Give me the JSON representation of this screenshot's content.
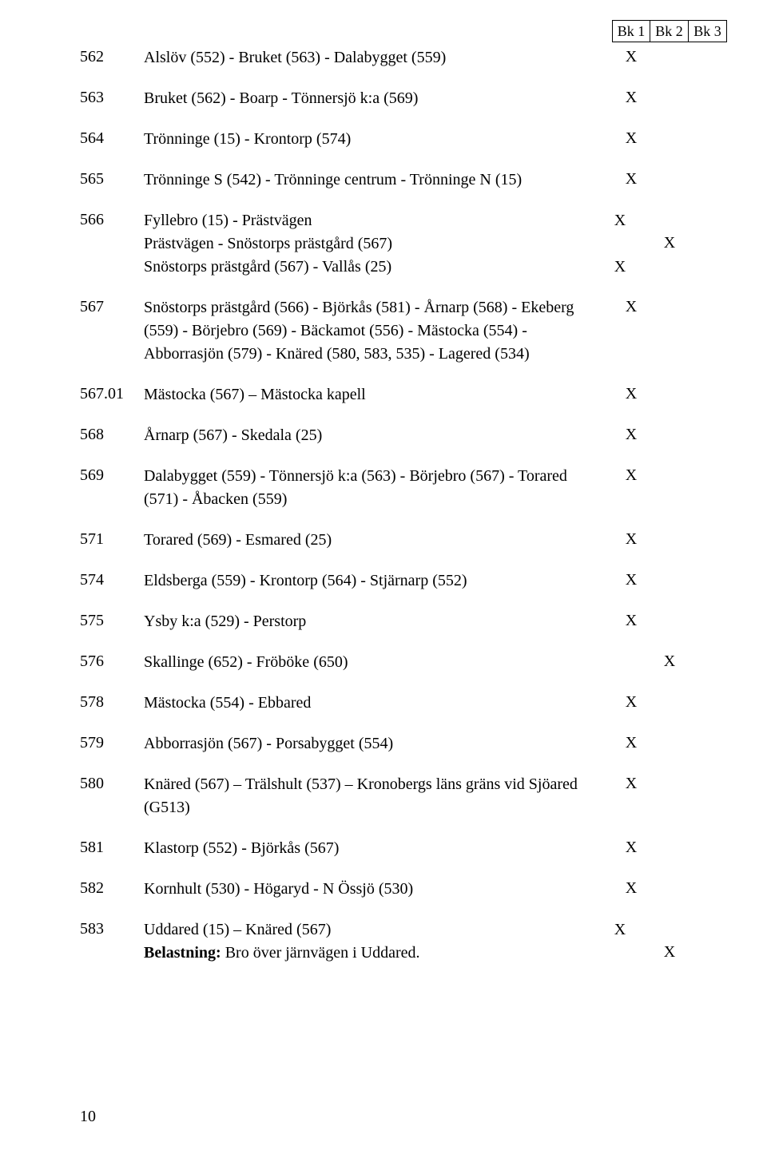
{
  "header": {
    "bk1": "Bk 1",
    "bk2": "Bk 2",
    "bk3": "Bk 3"
  },
  "rows": [
    {
      "num": "562",
      "lines": [
        "Alslöv (552) - Bruket (563) - Dalabygget (559)"
      ],
      "marks": [
        "X",
        "",
        ""
      ]
    },
    {
      "num": "563",
      "lines": [
        "Bruket (562) - Boarp - Tönnersjö k:a (569)"
      ],
      "marks": [
        "X",
        "",
        ""
      ]
    },
    {
      "num": "564",
      "lines": [
        "Trönninge (15) - Krontorp (574)"
      ],
      "marks": [
        "X",
        "",
        ""
      ]
    },
    {
      "num": "565",
      "lines": [
        "Trönninge S (542) - Trönninge centrum - Trönninge N (15)"
      ],
      "marks": [
        "X",
        "",
        ""
      ]
    },
    {
      "num": "566",
      "sublines": [
        {
          "text": "Fyllebro (15) - Prästvägen",
          "mark": "X"
        },
        {
          "text": "Prästvägen - Snöstorps prästgård (567)",
          "mark": ""
        },
        {
          "text": "Snöstorps prästgård (567) - Vallås (25)",
          "mark": "X"
        }
      ],
      "marks": [
        "",
        "X",
        ""
      ],
      "mark_row_index": 1
    },
    {
      "num": "567",
      "lines": [
        "Snöstorps prästgård (566) - Björkås (581) - Årnarp (568) - Ekeberg (559) - Börjebro (569) - Bäckamot (556) - Mästocka (554) - Abborrasjön (579) - Knäred (580, 583, 535) - Lagered (534)"
      ],
      "marks": [
        "X",
        "",
        ""
      ]
    },
    {
      "num": "567.01",
      "lines": [
        "Mästocka (567) – Mästocka kapell"
      ],
      "marks": [
        "X",
        "",
        ""
      ]
    },
    {
      "num": "568",
      "lines": [
        "Årnarp (567) - Skedala (25)"
      ],
      "marks": [
        "X",
        "",
        ""
      ]
    },
    {
      "num": "569",
      "lines": [
        "Dalabygget (559) - Tönnersjö k:a (563) - Börjebro (567) - Torared (571) - Åbacken (559)"
      ],
      "marks": [
        "X",
        "",
        ""
      ]
    },
    {
      "num": "571",
      "lines": [
        "Torared (569) - Esmared (25)"
      ],
      "marks": [
        "X",
        "",
        ""
      ]
    },
    {
      "num": "574",
      "lines": [
        "Eldsberga (559) - Krontorp (564) - Stjärnarp (552)"
      ],
      "marks": [
        "X",
        "",
        ""
      ]
    },
    {
      "num": "575",
      "lines": [
        "Ysby k:a (529) - Perstorp"
      ],
      "marks": [
        "X",
        "",
        ""
      ]
    },
    {
      "num": "576",
      "lines": [
        "Skallinge (652) - Fröböke (650)"
      ],
      "marks": [
        "",
        "X",
        ""
      ]
    },
    {
      "num": "578",
      "lines": [
        "Mästocka (554) - Ebbared"
      ],
      "marks": [
        "X",
        "",
        ""
      ]
    },
    {
      "num": "579",
      "lines": [
        "Abborrasjön (567) - Porsabygget (554)"
      ],
      "marks": [
        "X",
        "",
        ""
      ]
    },
    {
      "num": "580",
      "lines": [
        "Knäred (567) – Trälshult  (537) – Kronobergs läns gräns vid Sjöared (G513)"
      ],
      "marks": [
        "X",
        "",
        ""
      ]
    },
    {
      "num": "581",
      "lines": [
        "Klastorp (552) - Björkås (567)"
      ],
      "marks": [
        "X",
        "",
        ""
      ]
    },
    {
      "num": "582",
      "lines": [
        "Kornhult (530) - Högaryd - N Össjö (530)"
      ],
      "marks": [
        "X",
        "",
        ""
      ]
    },
    {
      "num": "583",
      "sublines": [
        {
          "text": "Uddared (15) – Knäred (567)",
          "mark": "X"
        },
        {
          "text_bold": "Belastning:",
          "text": " Bro över järnvägen i Uddared.",
          "mark": ""
        }
      ],
      "marks": [
        "",
        "X",
        ""
      ],
      "mark_row_index": 1
    }
  ],
  "page_number": "10",
  "style": {
    "font_family": "Times New Roman",
    "font_size_pt": 15,
    "text_color": "#000000",
    "background_color": "#ffffff",
    "border_color": "#000000"
  }
}
